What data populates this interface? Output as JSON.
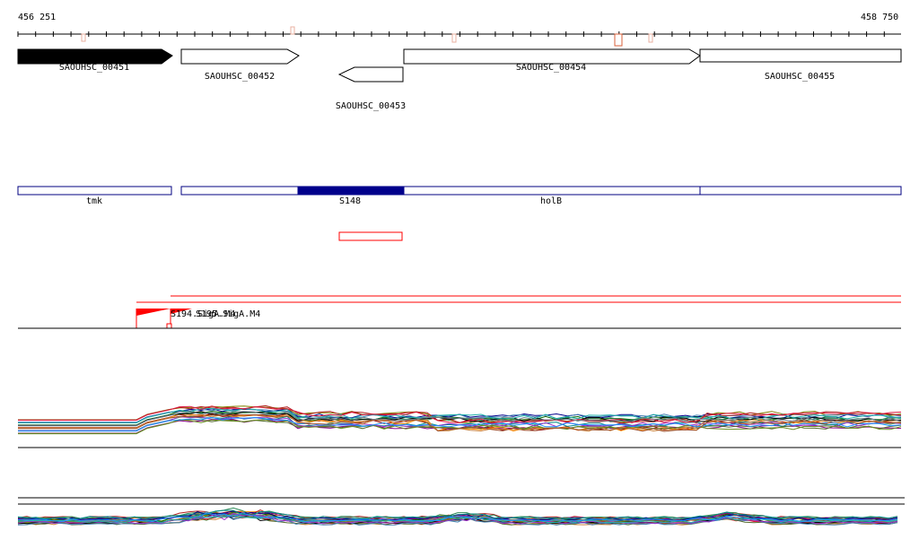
{
  "ruler": {
    "start_label": "456 251",
    "end_label": "458 750"
  },
  "genes": [
    {
      "label": "SAOUHSC_00451",
      "strand": "+",
      "fill": "#000000"
    },
    {
      "label": "SAOUHSC_00452",
      "strand": "+",
      "fill": "#ffffff"
    },
    {
      "label": "SAOUHSC_00453",
      "strand": "-",
      "fill": "#ffffff"
    },
    {
      "label": "SAOUHSC_00454",
      "strand": "+",
      "fill": "#ffffff"
    },
    {
      "label": "SAOUHSC_00455",
      "strand": "+",
      "fill": "#ffffff"
    }
  ],
  "operons": [
    {
      "label": "tmk"
    },
    {
      "label": "S148"
    },
    {
      "label": "holB"
    }
  ],
  "promoters": {
    "label_a": "S194.SigA.M4",
    "label_b": "S195.SigA.M4"
  },
  "colors": {
    "operon_stroke": "#000080",
    "operon_highlight": "#00008b",
    "feature_red": "#ff0000",
    "snp_marker": "#d9603b"
  }
}
